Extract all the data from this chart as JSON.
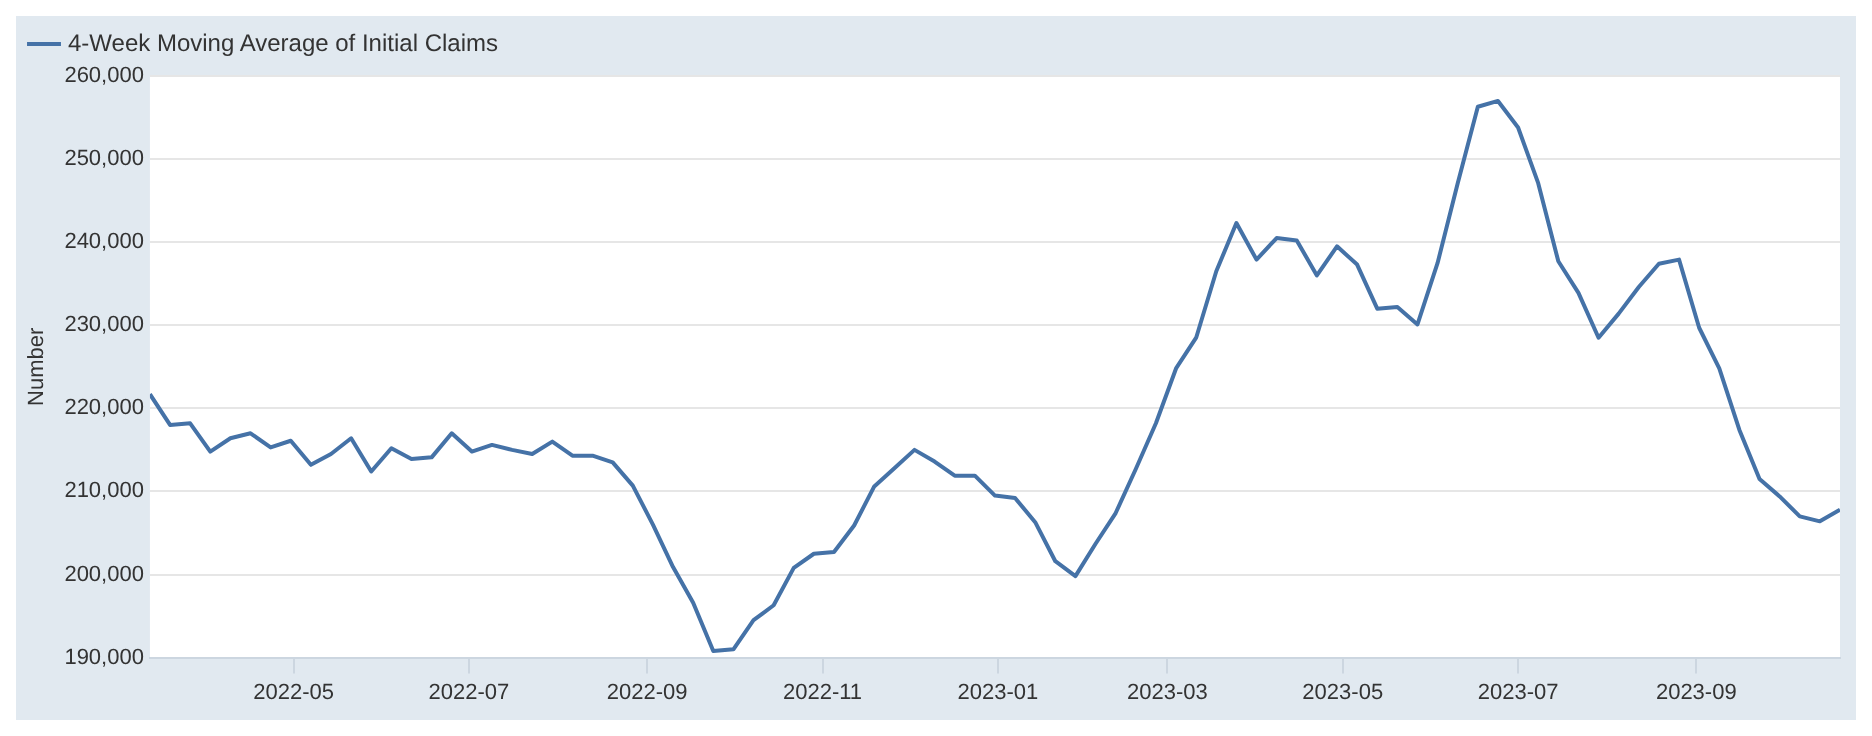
{
  "chart_data": {
    "type": "line",
    "ylabel": "Number",
    "legend": "top left",
    "grid": "y",
    "marker": "none",
    "line_style": "solid",
    "x": [
      "2022-03-12",
      "2022-03-19",
      "2022-03-26",
      "2022-04-02",
      "2022-04-09",
      "2022-04-16",
      "2022-04-23",
      "2022-04-30",
      "2022-05-07",
      "2022-05-14",
      "2022-05-21",
      "2022-05-28",
      "2022-06-04",
      "2022-06-11",
      "2022-06-18",
      "2022-06-25",
      "2022-07-02",
      "2022-07-09",
      "2022-07-16",
      "2022-07-23",
      "2022-07-30",
      "2022-08-06",
      "2022-08-13",
      "2022-08-20",
      "2022-08-27",
      "2022-09-03",
      "2022-09-10",
      "2022-09-17",
      "2022-09-24",
      "2022-10-01",
      "2022-10-08",
      "2022-10-15",
      "2022-10-22",
      "2022-10-29",
      "2022-11-05",
      "2022-11-12",
      "2022-11-19",
      "2022-11-26",
      "2022-12-03",
      "2022-12-10",
      "2022-12-17",
      "2022-12-24",
      "2022-12-31",
      "2023-01-07",
      "2023-01-14",
      "2023-01-21",
      "2023-01-28",
      "2023-02-04",
      "2023-02-11",
      "2023-02-18",
      "2023-02-25",
      "2023-03-04",
      "2023-03-11",
      "2023-03-18",
      "2023-03-25",
      "2023-04-01",
      "2023-04-08",
      "2023-04-15",
      "2023-04-22",
      "2023-04-29",
      "2023-05-06",
      "2023-05-13",
      "2023-05-20",
      "2023-05-27",
      "2023-06-03",
      "2023-06-10",
      "2023-06-17",
      "2023-06-24",
      "2023-07-01",
      "2023-07-08",
      "2023-07-15",
      "2023-07-22",
      "2023-07-29",
      "2023-08-05",
      "2023-08-12",
      "2023-08-19",
      "2023-08-26",
      "2023-09-02",
      "2023-09-09",
      "2023-09-16",
      "2023-09-23",
      "2023-09-30",
      "2023-10-07",
      "2023-10-14",
      "2023-10-21"
    ],
    "series": [
      {
        "name": "4-Week Moving Average of Initial Claims",
        "color": "#4572a7",
        "values": [
          221700,
          218000,
          218200,
          214800,
          216400,
          217000,
          215300,
          216100,
          213200,
          214500,
          216400,
          212400,
          215200,
          213900,
          214100,
          217000,
          214800,
          215600,
          215000,
          214500,
          216000,
          214300,
          214300,
          213500,
          210700,
          206000,
          200900,
          196600,
          190800,
          191000,
          194500,
          196300,
          200800,
          202500,
          202700,
          205900,
          210600,
          212800,
          215000,
          213600,
          211900,
          211900,
          209500,
          209200,
          206300,
          201600,
          199800,
          203700,
          207400,
          212700,
          218200,
          224800,
          228500,
          236500,
          242300,
          237900,
          240500,
          240200,
          236000,
          239500,
          237300,
          232000,
          232200,
          230100,
          237500,
          247100,
          256300,
          257000,
          253800,
          247100,
          237700,
          233900,
          228500,
          231400,
          234600,
          237400,
          237900,
          229700,
          224800,
          217400,
          211500,
          209400,
          207000,
          206400,
          207800
        ]
      }
    ],
    "xlim": [
      "2022-03-12",
      "2023-10-21"
    ],
    "xticks": [
      "2022-05",
      "2022-07",
      "2022-09",
      "2022-11",
      "2023-01",
      "2023-03",
      "2023-05",
      "2023-07",
      "2023-09"
    ],
    "ylim": [
      190000,
      260000
    ],
    "yticks": [
      {
        "value": 190000,
        "label": "190,000"
      },
      {
        "value": 200000,
        "label": "200,000"
      },
      {
        "value": 210000,
        "label": "210,000"
      },
      {
        "value": 220000,
        "label": "220,000"
      },
      {
        "value": 230000,
        "label": "230,000"
      },
      {
        "value": 240000,
        "label": "240,000"
      },
      {
        "value": 250000,
        "label": "250,000"
      },
      {
        "value": 260000,
        "label": "260,000"
      }
    ]
  }
}
